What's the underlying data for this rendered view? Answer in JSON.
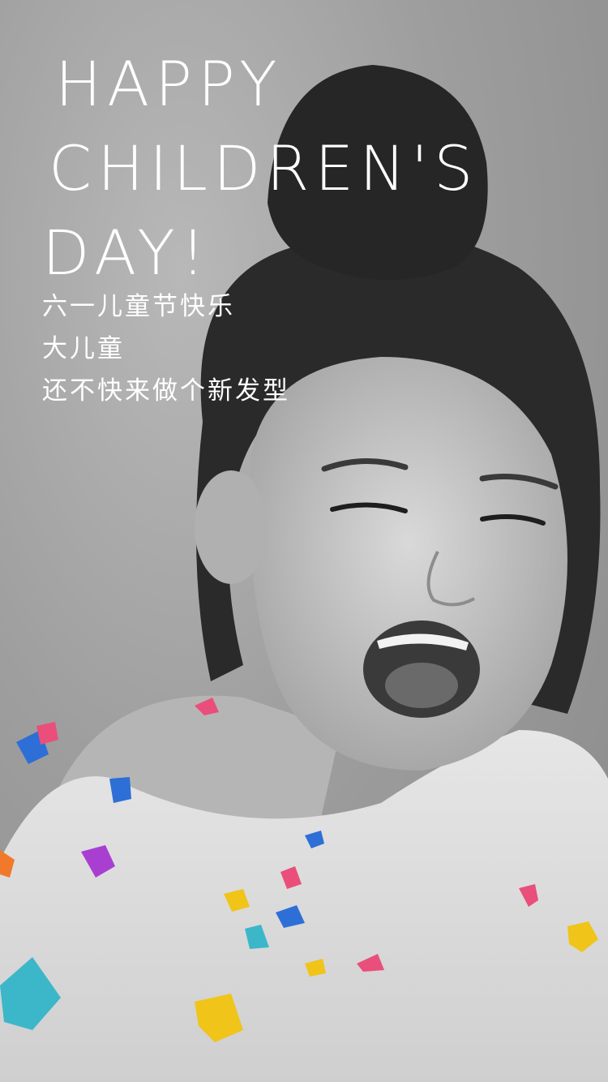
{
  "headline": {
    "line1": "HAPPY",
    "line2": "CHILDREN'S",
    "line3": "DAY!"
  },
  "slogan": {
    "line1": "六一儿童节快乐",
    "line2": "大儿童",
    "line3": "还不快来做个新发型"
  },
  "colors": {
    "text": "#ffffff",
    "photo_tone": "#9a9a9a",
    "confetti": [
      "#f0c419",
      "#3cb7c9",
      "#e94f7a",
      "#2d6fd6",
      "#a83fd1",
      "#f07a2a"
    ]
  }
}
